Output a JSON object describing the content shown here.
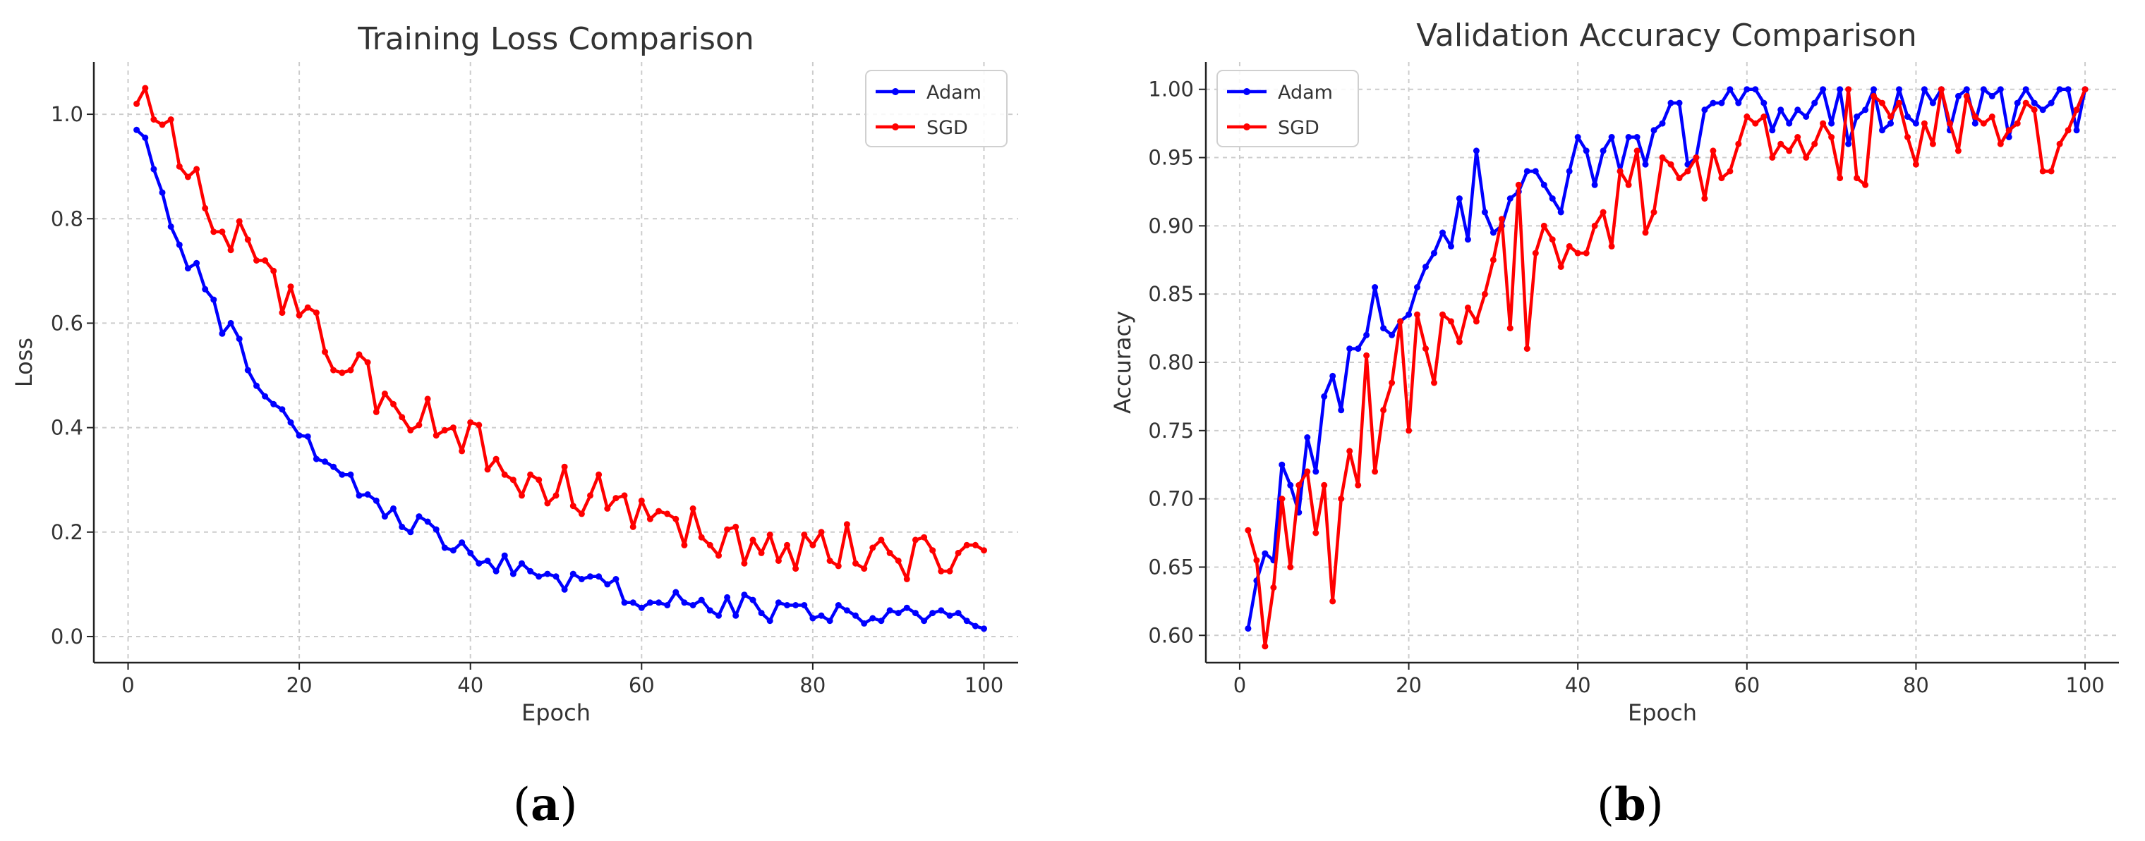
{
  "chart_data": [
    {
      "id": "a",
      "panel_label": "a",
      "type": "line",
      "title": "Training Loss Comparison",
      "xlabel": "Epoch",
      "ylabel": "Loss",
      "xlim": [
        -4,
        104
      ],
      "ylim": [
        -0.05,
        1.1
      ],
      "xticks": [
        0,
        20,
        40,
        60,
        80,
        100
      ],
      "yticks": [
        0.0,
        0.2,
        0.4,
        0.6,
        0.8,
        1.0
      ],
      "ytick_decimals": 1,
      "grid": true,
      "legend_position": "top-right",
      "series": [
        {
          "name": "Adam",
          "color": "#0000ff",
          "x": [
            1,
            2,
            3,
            4,
            5,
            6,
            7,
            8,
            9,
            10,
            11,
            12,
            13,
            14,
            15,
            16,
            17,
            18,
            19,
            20,
            21,
            22,
            23,
            24,
            25,
            26,
            27,
            28,
            29,
            30,
            31,
            32,
            33,
            34,
            35,
            36,
            37,
            38,
            39,
            40,
            41,
            42,
            43,
            44,
            45,
            46,
            47,
            48,
            49,
            50,
            51,
            52,
            53,
            54,
            55,
            56,
            57,
            58,
            59,
            60,
            61,
            62,
            63,
            64,
            65,
            66,
            67,
            68,
            69,
            70,
            71,
            72,
            73,
            74,
            75,
            76,
            77,
            78,
            79,
            80,
            81,
            82,
            83,
            84,
            85,
            86,
            87,
            88,
            89,
            90,
            91,
            92,
            93,
            94,
            95,
            96,
            97,
            98,
            99,
            100
          ],
          "y": [
            0.97,
            0.955,
            0.895,
            0.85,
            0.785,
            0.75,
            0.705,
            0.715,
            0.665,
            0.645,
            0.58,
            0.6,
            0.57,
            0.51,
            0.48,
            0.46,
            0.445,
            0.435,
            0.41,
            0.385,
            0.383,
            0.34,
            0.335,
            0.325,
            0.31,
            0.31,
            0.27,
            0.272,
            0.26,
            0.23,
            0.245,
            0.21,
            0.2,
            0.23,
            0.22,
            0.205,
            0.17,
            0.165,
            0.18,
            0.16,
            0.14,
            0.145,
            0.125,
            0.155,
            0.12,
            0.14,
            0.125,
            0.115,
            0.12,
            0.115,
            0.09,
            0.12,
            0.11,
            0.115,
            0.115,
            0.1,
            0.11,
            0.065,
            0.065,
            0.055,
            0.065,
            0.065,
            0.06,
            0.085,
            0.065,
            0.06,
            0.07,
            0.05,
            0.04,
            0.075,
            0.04,
            0.08,
            0.07,
            0.045,
            0.03,
            0.065,
            0.06,
            0.06,
            0.06,
            0.035,
            0.04,
            0.03,
            0.06,
            0.05,
            0.04,
            0.025,
            0.035,
            0.03,
            0.05,
            0.045,
            0.055,
            0.045,
            0.03,
            0.045,
            0.05,
            0.04,
            0.045,
            0.03,
            0.02,
            0.015
          ],
          "points": []
        },
        {
          "name": "SGD",
          "color": "#ff0000",
          "x": [
            1,
            2,
            3,
            4,
            5,
            6,
            7,
            8,
            9,
            10,
            11,
            12,
            13,
            14,
            15,
            16,
            17,
            18,
            19,
            20,
            21,
            22,
            23,
            24,
            25,
            26,
            27,
            28,
            29,
            30,
            31,
            32,
            33,
            34,
            35,
            36,
            37,
            38,
            39,
            40,
            41,
            42,
            43,
            44,
            45,
            46,
            47,
            48,
            49,
            50,
            51,
            52,
            53,
            54,
            55,
            56,
            57,
            58,
            59,
            60,
            61,
            62,
            63,
            64,
            65,
            66,
            67,
            68,
            69,
            70,
            71,
            72,
            73,
            74,
            75,
            76,
            77,
            78,
            79,
            80,
            81,
            82,
            83,
            84,
            85,
            86,
            87,
            88,
            89,
            90,
            91,
            92,
            93,
            94,
            95,
            96,
            97,
            98,
            99,
            100
          ],
          "y": [
            1.02,
            1.05,
            0.99,
            0.98,
            0.99,
            0.9,
            0.88,
            0.895,
            0.82,
            0.775,
            0.775,
            0.74,
            0.795,
            0.76,
            0.72,
            0.72,
            0.7,
            0.62,
            0.67,
            0.615,
            0.63,
            0.62,
            0.545,
            0.51,
            0.505,
            0.51,
            0.54,
            0.525,
            0.43,
            0.465,
            0.445,
            0.42,
            0.395,
            0.405,
            0.455,
            0.385,
            0.395,
            0.4,
            0.355,
            0.41,
            0.405,
            0.32,
            0.34,
            0.31,
            0.3,
            0.27,
            0.31,
            0.3,
            0.255,
            0.27,
            0.325,
            0.25,
            0.235,
            0.27,
            0.31,
            0.245,
            0.265,
            0.27,
            0.21,
            0.26,
            0.225,
            0.24,
            0.235,
            0.225,
            0.175,
            0.245,
            0.19,
            0.175,
            0.155,
            0.205,
            0.21,
            0.14,
            0.185,
            0.16,
            0.195,
            0.145,
            0.175,
            0.13,
            0.195,
            0.175,
            0.2,
            0.145,
            0.135,
            0.215,
            0.14,
            0.13,
            0.17,
            0.185,
            0.16,
            0.145,
            0.11,
            0.185,
            0.19,
            0.165,
            0.125,
            0.125,
            0.16,
            0.175,
            0.175,
            0.165
          ],
          "points": []
        }
      ]
    },
    {
      "id": "b",
      "panel_label": "b",
      "type": "line",
      "title": "Validation Accuracy Comparison",
      "xlabel": "Epoch",
      "ylabel": "Accuracy",
      "xlim": [
        -4,
        104
      ],
      "ylim": [
        0.58,
        1.02
      ],
      "xticks": [
        0,
        20,
        40,
        60,
        80,
        100
      ],
      "yticks": [
        0.6,
        0.65,
        0.7,
        0.75,
        0.8,
        0.85,
        0.9,
        0.95,
        1.0
      ],
      "ytick_decimals": 2,
      "grid": true,
      "legend_position": "top-left",
      "series": [
        {
          "name": "Adam",
          "color": "#0000ff",
          "x": [
            1,
            2,
            3,
            4,
            5,
            6,
            7,
            8,
            9,
            10,
            11,
            12,
            13,
            14,
            15,
            16,
            17,
            18,
            19,
            20,
            21,
            22,
            23,
            24,
            25,
            26,
            27,
            28,
            29,
            30,
            31,
            32,
            33,
            34,
            35,
            36,
            37,
            38,
            39,
            40,
            41,
            42,
            43,
            44,
            45,
            46,
            47,
            48,
            49,
            50,
            51,
            52,
            53,
            54,
            55,
            56,
            57,
            58,
            59,
            60,
            61,
            62,
            63,
            64,
            65,
            66,
            67,
            68,
            69,
            70,
            71,
            72,
            73,
            74,
            75,
            76,
            77,
            78,
            79,
            80,
            81,
            82,
            83,
            84,
            85,
            86,
            87,
            88,
            89,
            90,
            91,
            92,
            93,
            94,
            95,
            96,
            97,
            98,
            99,
            100
          ],
          "y": [
            0.605,
            0.64,
            0.66,
            0.655,
            0.725,
            0.71,
            0.69,
            0.745,
            0.72,
            0.775,
            0.79,
            0.765,
            0.81,
            0.81,
            0.82,
            0.855,
            0.825,
            0.82,
            0.83,
            0.835,
            0.855,
            0.87,
            0.88,
            0.895,
            0.885,
            0.92,
            0.89,
            0.955,
            0.91,
            0.895,
            0.9,
            0.92,
            0.925,
            0.94,
            0.94,
            0.93,
            0.92,
            0.91,
            0.94,
            0.965,
            0.955,
            0.93,
            0.955,
            0.965,
            0.94,
            0.965,
            0.965,
            0.945,
            0.97,
            0.975,
            0.99,
            0.99,
            0.945,
            0.95,
            0.985,
            0.99,
            0.99,
            1.0,
            0.99,
            1.0,
            1.0,
            0.99,
            0.97,
            0.985,
            0.975,
            0.985,
            0.98,
            0.99,
            1.0,
            0.975,
            1.0,
            0.96,
            0.98,
            0.985,
            1.0,
            0.97,
            0.975,
            1.0,
            0.98,
            0.975,
            1.0,
            0.99,
            1.0,
            0.97,
            0.995,
            1.0,
            0.975,
            1.0,
            0.995,
            1.0,
            0.965,
            0.99,
            1.0,
            0.99,
            0.985,
            0.99,
            1.0,
            1.0,
            0.97,
            1.0
          ],
          "points": []
        },
        {
          "name": "SGD",
          "color": "#ff0000",
          "x": [
            1,
            2,
            3,
            4,
            5,
            6,
            7,
            8,
            9,
            10,
            11,
            12,
            13,
            14,
            15,
            16,
            17,
            18,
            19,
            20,
            21,
            22,
            23,
            24,
            25,
            26,
            27,
            28,
            29,
            30,
            31,
            32,
            33,
            34,
            35,
            36,
            37,
            38,
            39,
            40,
            41,
            42,
            43,
            44,
            45,
            46,
            47,
            48,
            49,
            50,
            51,
            52,
            53,
            54,
            55,
            56,
            57,
            58,
            59,
            60,
            61,
            62,
            63,
            64,
            65,
            66,
            67,
            68,
            69,
            70,
            71,
            72,
            73,
            74,
            75,
            76,
            77,
            78,
            79,
            80,
            81,
            82,
            83,
            84,
            85,
            86,
            87,
            88,
            89,
            90,
            91,
            92,
            93,
            94,
            95,
            96,
            97,
            98,
            99,
            100
          ],
          "y": [
            0.677,
            0.655,
            0.592,
            0.635,
            0.7,
            0.65,
            0.71,
            0.72,
            0.675,
            0.71,
            0.625,
            0.7,
            0.735,
            0.71,
            0.805,
            0.72,
            0.765,
            0.785,
            0.83,
            0.75,
            0.835,
            0.81,
            0.785,
            0.835,
            0.83,
            0.815,
            0.84,
            0.83,
            0.85,
            0.875,
            0.905,
            0.825,
            0.93,
            0.81,
            0.88,
            0.9,
            0.89,
            0.87,
            0.885,
            0.88,
            0.88,
            0.9,
            0.91,
            0.885,
            0.94,
            0.93,
            0.955,
            0.895,
            0.91,
            0.95,
            0.945,
            0.935,
            0.94,
            0.95,
            0.92,
            0.955,
            0.935,
            0.94,
            0.96,
            0.98,
            0.975,
            0.98,
            0.95,
            0.96,
            0.955,
            0.965,
            0.95,
            0.96,
            0.975,
            0.965,
            0.935,
            1.0,
            0.935,
            0.93,
            0.995,
            0.99,
            0.98,
            0.99,
            0.965,
            0.945,
            0.975,
            0.96,
            1.0,
            0.975,
            0.955,
            0.995,
            0.98,
            0.975,
            0.98,
            0.96,
            0.97,
            0.975,
            0.99,
            0.985,
            0.94,
            0.94,
            0.96,
            0.97,
            0.985,
            1.0
          ],
          "points": []
        }
      ]
    }
  ]
}
